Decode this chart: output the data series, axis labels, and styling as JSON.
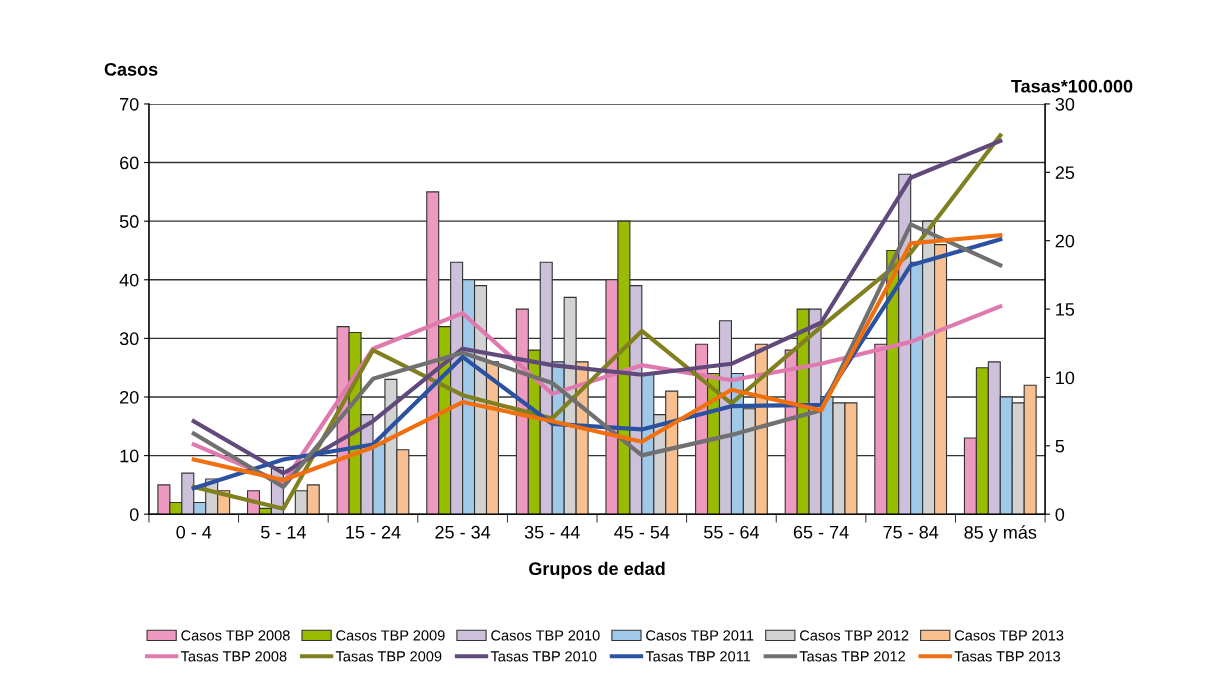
{
  "chart_data": {
    "type": "bar",
    "xlabel": "Grupos de edad",
    "ylabel": "Casos",
    "y2label": "Tasas*100.000",
    "categories": [
      "0 - 4",
      "5 - 14",
      "15 - 24",
      "25 - 34",
      "35 - 44",
      "45 - 54",
      "55 - 64",
      "65 - 74",
      "75 - 84",
      "85 y más"
    ],
    "series": [
      {
        "name": "Casos TBP 2008",
        "color": "#ee9ac0",
        "values": [
          5,
          4,
          32,
          55,
          35,
          40,
          29,
          28,
          29,
          13
        ]
      },
      {
        "name": "Casos TBP 2009",
        "color": "#99bb00",
        "values": [
          2,
          1,
          31,
          32,
          28,
          50,
          24,
          35,
          45,
          25
        ]
      },
      {
        "name": "Casos TBP 2010",
        "color": "#ccc0da",
        "values": [
          7,
          8,
          17,
          43,
          43,
          39,
          33,
          35,
          58,
          26
        ]
      },
      {
        "name": "Casos TBP 2011",
        "color": "#a0c8e8",
        "values": [
          2,
          null,
          12,
          40,
          26,
          24,
          24,
          20,
          43,
          20
        ]
      },
      {
        "name": "Casos TBP 2012",
        "color": "#d2d2d2",
        "values": [
          6,
          4,
          23,
          39,
          37,
          17,
          18,
          19,
          50,
          19
        ]
      },
      {
        "name": "Casos TBP 2013",
        "color": "#f8c090",
        "values": [
          4,
          5,
          11,
          26,
          26,
          21,
          29,
          19,
          46,
          22
        ]
      },
      {
        "name": "Tasas TBP 2008",
        "type": "line",
        "axis": "y2",
        "color": "#e07aae",
        "values": [
          5.1,
          2.3,
          12.1,
          14.7,
          8.8,
          10.9,
          9.8,
          11.0,
          12.6,
          15.2
        ]
      },
      {
        "name": "Tasas TBP 2009",
        "type": "line",
        "axis": "y2",
        "color": "#808020",
        "values": [
          2.0,
          0.4,
          12.0,
          8.7,
          7.0,
          13.4,
          8.1,
          13.7,
          19.1,
          27.7
        ]
      },
      {
        "name": "Tasas TBP 2010",
        "type": "line",
        "axis": "y2",
        "color": "#604a7b",
        "values": [
          6.8,
          3.0,
          6.8,
          12.1,
          10.9,
          10.2,
          11.0,
          14.0,
          24.6,
          27.3
        ]
      },
      {
        "name": "Tasas TBP 2011",
        "type": "line",
        "axis": "y2",
        "color": "#2a52a0",
        "values": [
          1.9,
          4.0,
          5.1,
          11.5,
          6.6,
          6.2,
          7.9,
          8.0,
          18.2,
          20.1
        ]
      },
      {
        "name": "Tasas TBP 2012",
        "type": "line",
        "axis": "y2",
        "color": "#707070",
        "values": [
          5.9,
          2.0,
          9.9,
          11.8,
          9.6,
          4.3,
          5.8,
          7.6,
          21.2,
          18.2
        ]
      },
      {
        "name": "Tasas TBP 2013",
        "type": "line",
        "axis": "y2",
        "color": "#f07010",
        "values": [
          4.0,
          2.5,
          4.9,
          8.2,
          6.8,
          5.3,
          9.1,
          7.6,
          19.8,
          20.4
        ]
      }
    ],
    "ylim": [
      0,
      70
    ],
    "yticks": [
      0,
      10,
      20,
      30,
      40,
      50,
      60,
      70
    ],
    "y2lim": [
      0,
      30
    ],
    "y2ticks": [
      0,
      5,
      10,
      15,
      20,
      25,
      30
    ],
    "grid": "y",
    "legend": "bottom",
    "line_style": "solid",
    "marker": "none"
  }
}
